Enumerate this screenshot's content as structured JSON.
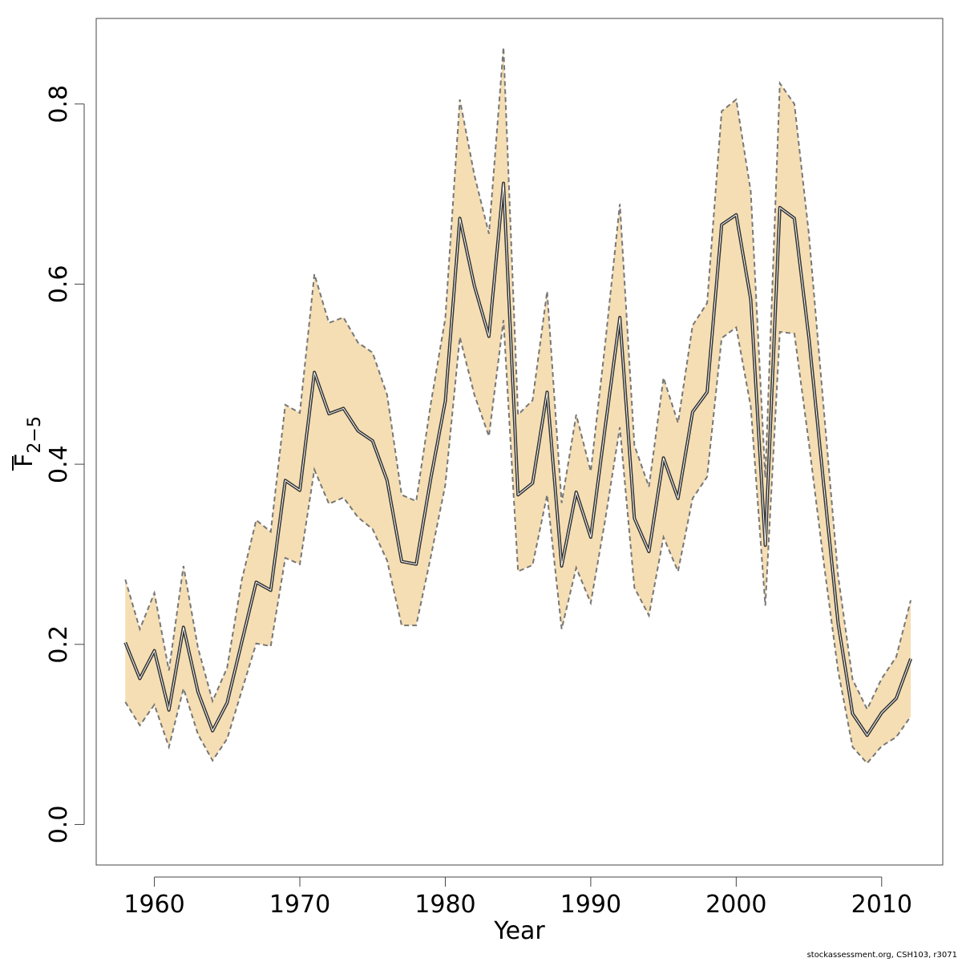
{
  "chart_data": {
    "type": "area",
    "xlabel": "Year",
    "ylabel": {
      "base": "F",
      "subscript": "2−5"
    },
    "xlim": [
      1956,
      2014.2
    ],
    "ylim": [
      -0.045,
      0.895
    ],
    "x_ticks": [
      1960,
      1970,
      1980,
      1990,
      2000,
      2010
    ],
    "y_ticks": [
      0.0,
      0.2,
      0.4,
      0.6,
      0.8
    ],
    "x_tick_labels": [
      "1960",
      "1970",
      "1980",
      "1990",
      "2000",
      "2010"
    ],
    "y_tick_labels": [
      "0.0",
      "0.2",
      "0.4",
      "0.6",
      "0.8"
    ],
    "band_color": "#F5DEB3",
    "line_color": "#333333",
    "bound_line_color": "#777777",
    "x": [
      1958,
      1959,
      1960,
      1961,
      1962,
      1963,
      1964,
      1965,
      1966,
      1967,
      1968,
      1969,
      1970,
      1971,
      1972,
      1973,
      1974,
      1975,
      1976,
      1977,
      1978,
      1979,
      1980,
      1981,
      1982,
      1983,
      1984,
      1985,
      1986,
      1987,
      1988,
      1989,
      1990,
      1991,
      1992,
      1993,
      1994,
      1995,
      1996,
      1997,
      1998,
      1999,
      2000,
      2001,
      2002,
      2003,
      2004,
      2005,
      2006,
      2007,
      2008,
      2009,
      2010,
      2011,
      2012
    ],
    "series": [
      {
        "values": [
          0.202,
          0.162,
          0.193,
          0.127,
          0.219,
          0.147,
          0.104,
          0.135,
          0.202,
          0.269,
          0.26,
          0.382,
          0.371,
          0.502,
          0.456,
          0.462,
          0.437,
          0.426,
          0.382,
          0.292,
          0.289,
          0.384,
          0.47,
          0.673,
          0.598,
          0.542,
          0.712,
          0.366,
          0.379,
          0.48,
          0.287,
          0.369,
          0.319,
          0.442,
          0.563,
          0.34,
          0.303,
          0.407,
          0.362,
          0.458,
          0.48,
          0.666,
          0.677,
          0.583,
          0.31,
          0.685,
          0.673,
          0.54,
          0.38,
          0.224,
          0.123,
          0.099,
          0.124,
          0.14,
          0.184
        ]
      },
      {
        "values": [
          0.272,
          0.217,
          0.257,
          0.171,
          0.287,
          0.196,
          0.137,
          0.174,
          0.271,
          0.338,
          0.325,
          0.466,
          0.457,
          0.611,
          0.557,
          0.563,
          0.535,
          0.524,
          0.477,
          0.366,
          0.359,
          0.467,
          0.562,
          0.805,
          0.721,
          0.656,
          0.863,
          0.455,
          0.471,
          0.592,
          0.357,
          0.455,
          0.392,
          0.535,
          0.689,
          0.421,
          0.375,
          0.496,
          0.446,
          0.554,
          0.579,
          0.792,
          0.805,
          0.703,
          0.385,
          0.823,
          0.8,
          0.655,
          0.465,
          0.277,
          0.161,
          0.128,
          0.162,
          0.186,
          0.249
        ]
      },
      {
        "values": [
          0.136,
          0.11,
          0.133,
          0.086,
          0.151,
          0.1,
          0.071,
          0.095,
          0.148,
          0.201,
          0.198,
          0.296,
          0.289,
          0.394,
          0.356,
          0.363,
          0.341,
          0.328,
          0.293,
          0.221,
          0.221,
          0.297,
          0.377,
          0.541,
          0.477,
          0.431,
          0.56,
          0.281,
          0.288,
          0.366,
          0.217,
          0.285,
          0.246,
          0.339,
          0.441,
          0.263,
          0.232,
          0.319,
          0.281,
          0.362,
          0.386,
          0.54,
          0.552,
          0.464,
          0.243,
          0.547,
          0.545,
          0.423,
          0.293,
          0.171,
          0.086,
          0.068,
          0.087,
          0.097,
          0.12
        ]
      }
    ]
  },
  "footer": "stockassessment.org, CSH103, r3071"
}
